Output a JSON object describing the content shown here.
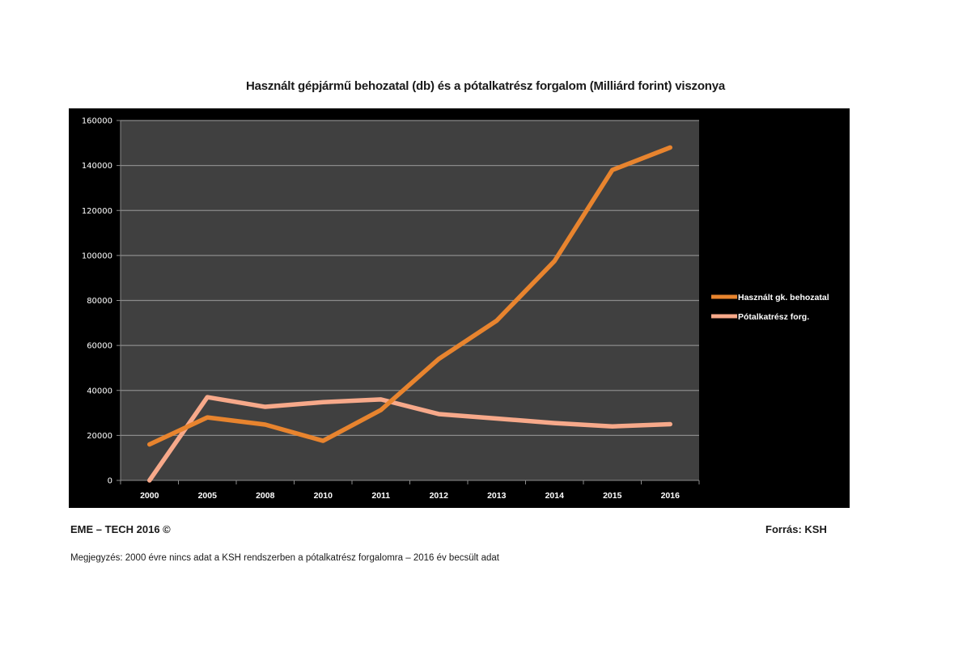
{
  "chart_data": {
    "type": "line",
    "title": "Használt gépjármű behozatal (db) és a pótalkatrész forgalom (Milliárd forint) viszonya",
    "xlabel": "",
    "ylabel": "",
    "categories": [
      "2000",
      "2005",
      "2008",
      "2010",
      "2011",
      "2012",
      "2013",
      "2014",
      "2015",
      "2016"
    ],
    "ylim": [
      0,
      160000
    ],
    "yticks": [
      "0",
      "20000",
      "40000",
      "60000",
      "80000",
      "100000",
      "120000",
      "140000",
      "160000"
    ],
    "ytick_values": [
      0,
      20000,
      40000,
      60000,
      80000,
      100000,
      120000,
      140000,
      160000
    ],
    "grid": true,
    "legend_position": "right",
    "series": [
      {
        "name": "Használt gk. behozatal",
        "color": "#E8842E",
        "values": [
          16000,
          28000,
          24800,
          17600,
          31300,
          54000,
          71000,
          97500,
          138000,
          148000
        ]
      },
      {
        "name": "Pótalkatrész forg.",
        "color": "#F7A98A",
        "values": [
          0,
          37000,
          32700,
          34800,
          36000,
          29500,
          27500,
          25500,
          24000,
          25000
        ]
      }
    ],
    "colors": {
      "frame": "#000000",
      "plot_background": "#404040",
      "gridline": "#8a8a8a",
      "tick_text": "#ffffff"
    }
  },
  "footer": {
    "left": "EME – TECH 2016 ©",
    "right": "Forrás: KSH",
    "note": "Megjegyzés: 2000 évre nincs adat a KSH rendszerben a pótalkatrész forgalomra – 2016 év becsült adat"
  }
}
